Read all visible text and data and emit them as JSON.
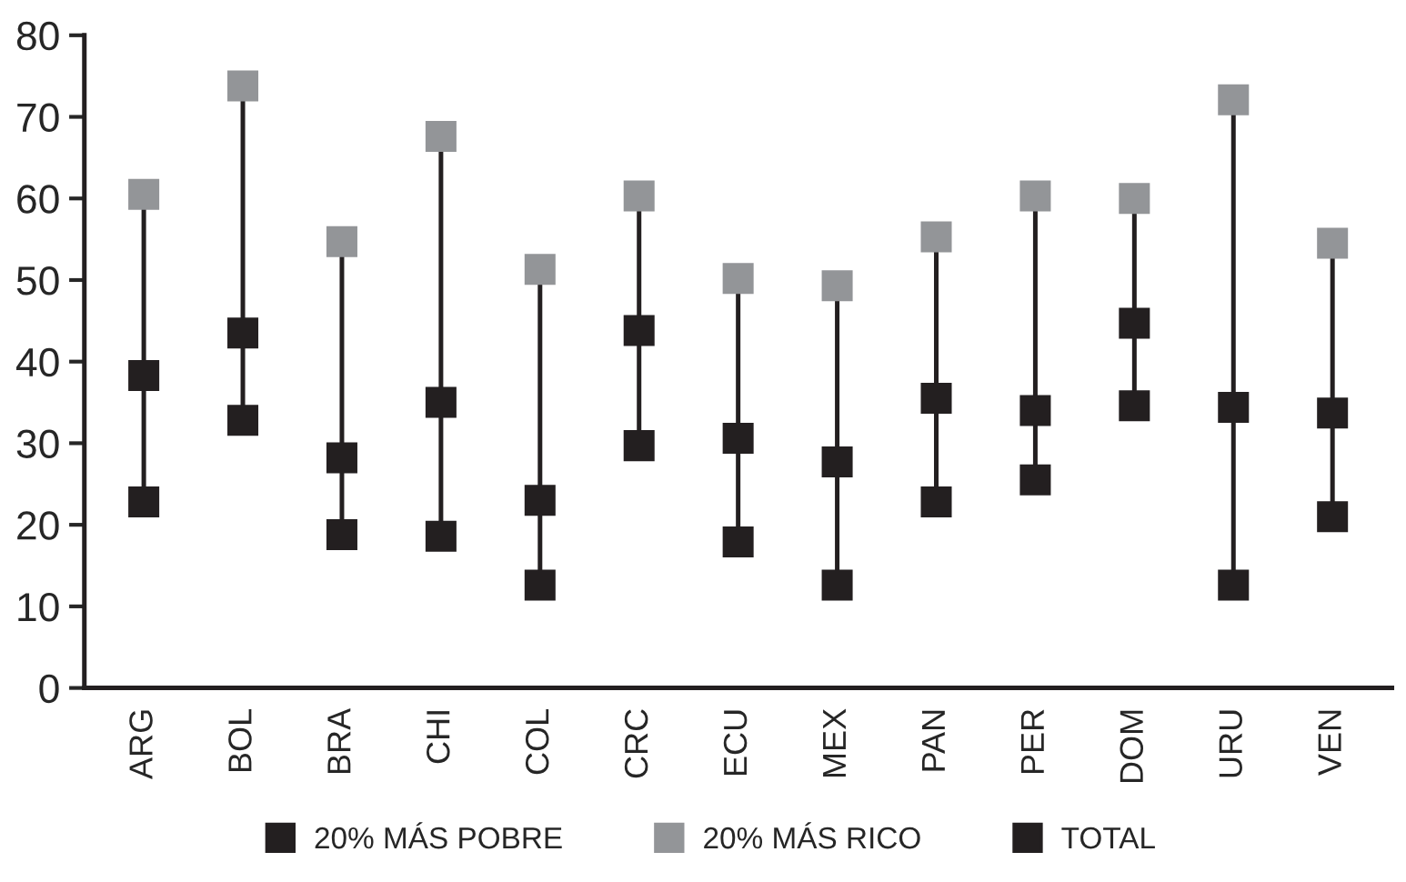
{
  "chart_data": {
    "type": "scatter",
    "categories": [
      "ARG",
      "BOL",
      "BRA",
      "CHI",
      "COL",
      "CRC",
      "ECU",
      "MEX",
      "PAN",
      "PER",
      "DOM",
      "URU",
      "VEN"
    ],
    "series": [
      {
        "name": "20% MÁS POBRE",
        "color": "#231f20",
        "values": [
          22.8,
          32.8,
          18.8,
          18.6,
          12.6,
          29.7,
          17.9,
          12.6,
          22.8,
          25.5,
          34.6,
          12.6,
          21.0
        ]
      },
      {
        "name": "20% MÁS RICO",
        "color": "#939598",
        "values": [
          60.5,
          73.8,
          54.7,
          67.6,
          51.3,
          60.3,
          50.2,
          49.3,
          55.3,
          60.3,
          60.0,
          72.1,
          54.5
        ]
      },
      {
        "name": "TOTAL",
        "color": "#231f20",
        "values": [
          38.3,
          43.5,
          28.2,
          35.0,
          23.0,
          43.8,
          30.6,
          27.7,
          35.5,
          34.0,
          44.7,
          34.4,
          33.7
        ]
      }
    ],
    "ylim": [
      0,
      80
    ],
    "yticks": [
      0,
      10,
      20,
      30,
      40,
      50,
      60,
      70,
      80
    ],
    "marker": "square",
    "legend": "bottom"
  }
}
